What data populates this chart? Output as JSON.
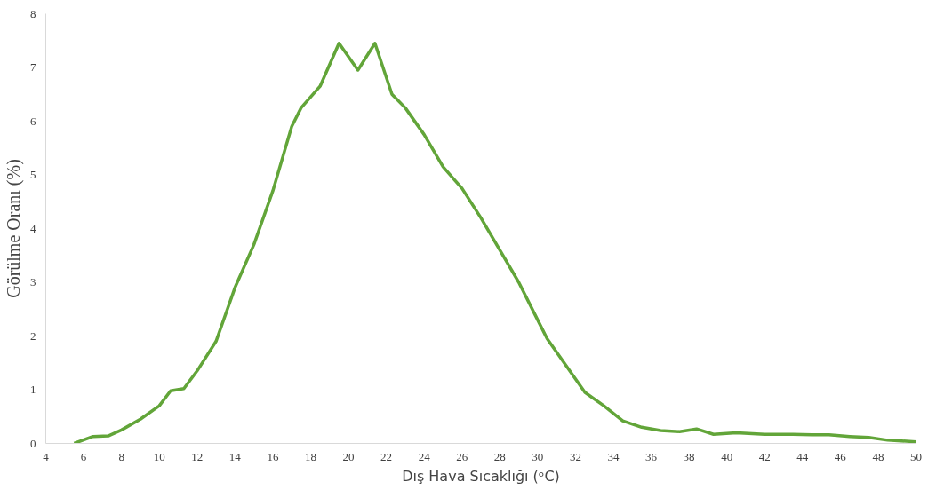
{
  "chart_data": {
    "type": "line",
    "xlabel": "Dış Hava Sıcaklığı (ᵒC)",
    "ylabel": "Görülme Oranı (%)",
    "x": [
      5.5,
      6.5,
      7.3,
      8,
      9,
      10,
      10.6,
      11.3,
      12,
      13,
      14,
      15,
      16,
      17,
      17.5,
      18.5,
      19.5,
      20.5,
      21.4,
      22.3,
      23,
      24,
      25,
      26,
      27,
      28,
      29,
      30,
      30.5,
      31.5,
      32.5,
      33.5,
      34.5,
      35.5,
      36.5,
      37.5,
      38.4,
      39.3,
      40.5,
      42,
      43.5,
      44.5,
      45.4,
      46.5,
      47.5,
      48.5,
      50
    ],
    "series": [
      {
        "color": "#62a539",
        "values": [
          0,
          0.13,
          0.14,
          0.25,
          0.45,
          0.7,
          0.98,
          1.02,
          1.35,
          1.9,
          2.9,
          3.7,
          4.7,
          5.9,
          6.25,
          6.65,
          7.45,
          6.95,
          7.45,
          6.5,
          6.25,
          5.75,
          5.15,
          4.75,
          4.2,
          3.6,
          3.0,
          2.3,
          1.95,
          1.45,
          0.95,
          0.7,
          0.42,
          0.3,
          0.24,
          0.22,
          0.27,
          0.17,
          0.2,
          0.17,
          0.17,
          0.16,
          0.16,
          0.13,
          0.11,
          0.06,
          0.03
        ]
      }
    ],
    "xlim": [
      4,
      50
    ],
    "xticks": [
      4,
      6,
      8,
      10,
      12,
      14,
      16,
      18,
      20,
      22,
      24,
      26,
      28,
      30,
      32,
      34,
      36,
      38,
      40,
      42,
      44,
      46,
      48,
      50
    ],
    "ylim": [
      0,
      8
    ],
    "yticks": [
      0,
      1,
      2,
      3,
      4,
      5,
      6,
      7,
      8
    ],
    "grid": false,
    "marker": "none",
    "line_style": "solid"
  }
}
